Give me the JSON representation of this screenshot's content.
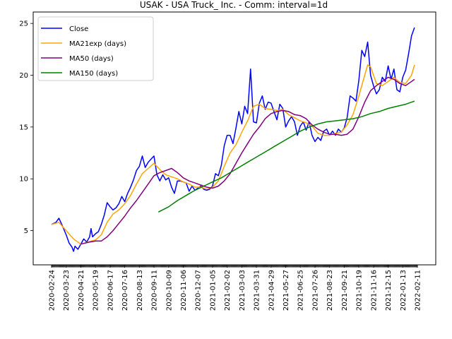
{
  "chart_data": {
    "type": "line",
    "title": "USAK - USA Truck_ Inc. - Comm: interval=1d",
    "xlabel": "",
    "ylabel": "",
    "ylim": [
      1.7,
      26.1
    ],
    "yticks": [
      5,
      10,
      15,
      20,
      25
    ],
    "grid": false,
    "legend_position": "upper-left",
    "x_tick_labels": [
      "2020-02-24",
      "2020-03-23",
      "2020-04-21",
      "2020-05-19",
      "2020-06-17",
      "2020-07-16",
      "2020-08-13",
      "2020-09-11",
      "2020-10-09",
      "2020-11-06",
      "2020-12-07",
      "2021-01-05",
      "2021-02-02",
      "2021-03-03",
      "2021-03-31",
      "2021-04-29",
      "2021-05-27",
      "2021-06-25",
      "2021-07-26",
      "2021-08-23",
      "2021-09-21",
      "2021-10-19",
      "2021-11-16",
      "2021-12-15",
      "2022-01-13",
      "2022-02-11"
    ],
    "colors": {
      "Close": "#0000ff",
      "MA21exp (days)": "#ffa500",
      "MA50 (days)": "#800080",
      "MA150 (days)": "#008000"
    },
    "series": [
      {
        "name": "Close",
        "points": [
          [
            0,
            5.6
          ],
          [
            0.3,
            5.8
          ],
          [
            0.5,
            6.2
          ],
          [
            0.7,
            5.6
          ],
          [
            1.0,
            4.6
          ],
          [
            1.2,
            3.8
          ],
          [
            1.4,
            3.4
          ],
          [
            1.5,
            3.0
          ],
          [
            1.6,
            3.5
          ],
          [
            1.8,
            3.2
          ],
          [
            2.0,
            3.7
          ],
          [
            2.2,
            4.2
          ],
          [
            2.4,
            3.9
          ],
          [
            2.6,
            4.4
          ],
          [
            2.7,
            5.2
          ],
          [
            2.8,
            4.4
          ],
          [
            3.0,
            4.7
          ],
          [
            3.2,
            4.9
          ],
          [
            3.4,
            5.6
          ],
          [
            3.6,
            6.5
          ],
          [
            3.8,
            7.7
          ],
          [
            4.0,
            7.3
          ],
          [
            4.2,
            7.0
          ],
          [
            4.4,
            7.2
          ],
          [
            4.6,
            7.6
          ],
          [
            4.8,
            8.3
          ],
          [
            5.0,
            7.8
          ],
          [
            5.2,
            8.6
          ],
          [
            5.4,
            9.2
          ],
          [
            5.6,
            9.9
          ],
          [
            5.8,
            10.8
          ],
          [
            6.0,
            11.2
          ],
          [
            6.2,
            12.2
          ],
          [
            6.4,
            11.1
          ],
          [
            6.6,
            11.6
          ],
          [
            6.8,
            11.9
          ],
          [
            7.0,
            12.2
          ],
          [
            7.2,
            10.4
          ],
          [
            7.4,
            9.8
          ],
          [
            7.6,
            10.4
          ],
          [
            7.8,
            9.9
          ],
          [
            8.0,
            10.1
          ],
          [
            8.2,
            9.2
          ],
          [
            8.4,
            8.6
          ],
          [
            8.6,
            9.8
          ],
          [
            8.8,
            9.8
          ],
          [
            9.0,
            9.7
          ],
          [
            9.2,
            9.6
          ],
          [
            9.4,
            8.8
          ],
          [
            9.6,
            9.3
          ],
          [
            9.8,
            8.9
          ],
          [
            10.0,
            9.1
          ],
          [
            10.2,
            9.3
          ],
          [
            10.4,
            9.0
          ],
          [
            10.6,
            8.9
          ],
          [
            10.8,
            9.0
          ],
          [
            11.0,
            9.3
          ],
          [
            11.2,
            10.5
          ],
          [
            11.4,
            10.3
          ],
          [
            11.6,
            11.3
          ],
          [
            11.8,
            13.2
          ],
          [
            12.0,
            14.2
          ],
          [
            12.2,
            14.2
          ],
          [
            12.4,
            13.4
          ],
          [
            12.6,
            14.9
          ],
          [
            12.8,
            16.5
          ],
          [
            13.0,
            15.3
          ],
          [
            13.2,
            17.0
          ],
          [
            13.4,
            16.3
          ],
          [
            13.6,
            20.6
          ],
          [
            13.8,
            15.5
          ],
          [
            14.0,
            15.4
          ],
          [
            14.2,
            17.3
          ],
          [
            14.4,
            18.0
          ],
          [
            14.6,
            16.7
          ],
          [
            14.8,
            17.4
          ],
          [
            15.0,
            17.3
          ],
          [
            15.2,
            16.5
          ],
          [
            15.4,
            15.7
          ],
          [
            15.6,
            17.2
          ],
          [
            15.8,
            16.8
          ],
          [
            16.0,
            15.0
          ],
          [
            16.2,
            15.6
          ],
          [
            16.4,
            16.0
          ],
          [
            16.6,
            15.5
          ],
          [
            16.8,
            14.2
          ],
          [
            17.0,
            15.1
          ],
          [
            17.2,
            15.5
          ],
          [
            17.4,
            14.7
          ],
          [
            17.6,
            15.5
          ],
          [
            17.8,
            14.2
          ],
          [
            18.0,
            13.6
          ],
          [
            18.2,
            14.0
          ],
          [
            18.4,
            13.7
          ],
          [
            18.6,
            14.6
          ],
          [
            18.8,
            14.8
          ],
          [
            19.0,
            14.2
          ],
          [
            19.2,
            14.6
          ],
          [
            19.4,
            14.2
          ],
          [
            19.6,
            14.8
          ],
          [
            19.8,
            14.5
          ],
          [
            20.0,
            14.9
          ],
          [
            20.2,
            15.9
          ],
          [
            20.4,
            18.0
          ],
          [
            20.6,
            17.8
          ],
          [
            20.8,
            17.5
          ],
          [
            21.0,
            19.5
          ],
          [
            21.2,
            22.4
          ],
          [
            21.4,
            21.8
          ],
          [
            21.6,
            23.2
          ],
          [
            21.8,
            20.0
          ],
          [
            22.0,
            19.0
          ],
          [
            22.2,
            18.2
          ],
          [
            22.4,
            18.6
          ],
          [
            22.6,
            19.8
          ],
          [
            22.8,
            19.4
          ],
          [
            23.0,
            20.9
          ],
          [
            23.2,
            19.6
          ],
          [
            23.4,
            20.6
          ],
          [
            23.6,
            18.6
          ],
          [
            23.8,
            18.4
          ],
          [
            24.0,
            19.8
          ],
          [
            24.2,
            20.5
          ],
          [
            24.4,
            22.1
          ],
          [
            24.6,
            23.8
          ],
          [
            24.8,
            24.6
          ]
        ]
      },
      {
        "name": "MA21exp (days)",
        "points": [
          [
            0,
            5.6
          ],
          [
            0.5,
            5.8
          ],
          [
            1.0,
            5.0
          ],
          [
            1.5,
            4.2
          ],
          [
            2.0,
            3.7
          ],
          [
            2.5,
            3.9
          ],
          [
            3.0,
            4.1
          ],
          [
            3.4,
            4.6
          ],
          [
            3.8,
            5.8
          ],
          [
            4.2,
            6.6
          ],
          [
            4.6,
            7.0
          ],
          [
            5.0,
            7.6
          ],
          [
            5.4,
            8.4
          ],
          [
            5.8,
            9.5
          ],
          [
            6.2,
            10.5
          ],
          [
            6.6,
            11.0
          ],
          [
            7.0,
            11.5
          ],
          [
            7.4,
            10.9
          ],
          [
            7.8,
            10.4
          ],
          [
            8.2,
            10.2
          ],
          [
            8.6,
            10.0
          ],
          [
            9.0,
            9.7
          ],
          [
            9.4,
            9.5
          ],
          [
            9.8,
            9.2
          ],
          [
            10.2,
            9.2
          ],
          [
            10.6,
            9.0
          ],
          [
            11.0,
            9.2
          ],
          [
            11.4,
            9.8
          ],
          [
            11.8,
            11.2
          ],
          [
            12.2,
            12.5
          ],
          [
            12.6,
            13.3
          ],
          [
            13.0,
            14.5
          ],
          [
            13.4,
            15.6
          ],
          [
            13.8,
            17.0
          ],
          [
            14.2,
            17.2
          ],
          [
            14.6,
            16.8
          ],
          [
            15.0,
            16.7
          ],
          [
            15.4,
            16.6
          ],
          [
            15.8,
            16.7
          ],
          [
            16.2,
            16.2
          ],
          [
            16.6,
            15.9
          ],
          [
            17.0,
            15.6
          ],
          [
            17.4,
            15.4
          ],
          [
            17.8,
            15.1
          ],
          [
            18.2,
            14.4
          ],
          [
            18.6,
            14.2
          ],
          [
            19.0,
            14.2
          ],
          [
            19.4,
            14.4
          ],
          [
            19.8,
            14.5
          ],
          [
            20.2,
            15.2
          ],
          [
            20.6,
            16.2
          ],
          [
            21.0,
            18.0
          ],
          [
            21.4,
            20.0
          ],
          [
            21.6,
            21.0
          ],
          [
            21.8,
            20.8
          ],
          [
            22.2,
            19.2
          ],
          [
            22.6,
            19.0
          ],
          [
            23.0,
            19.4
          ],
          [
            23.4,
            19.8
          ],
          [
            23.8,
            19.3
          ],
          [
            24.2,
            19.2
          ],
          [
            24.6,
            20.0
          ],
          [
            24.8,
            21.0
          ]
        ]
      },
      {
        "name": "MA50 (days)",
        "points": [
          [
            2.0,
            3.7
          ],
          [
            2.6,
            3.9
          ],
          [
            3.0,
            4.0
          ],
          [
            3.4,
            4.0
          ],
          [
            3.8,
            4.4
          ],
          [
            4.2,
            5.0
          ],
          [
            4.6,
            5.7
          ],
          [
            5.0,
            6.4
          ],
          [
            5.4,
            7.2
          ],
          [
            5.8,
            7.9
          ],
          [
            6.2,
            8.7
          ],
          [
            6.6,
            9.5
          ],
          [
            7.0,
            10.3
          ],
          [
            7.4,
            10.6
          ],
          [
            7.8,
            10.8
          ],
          [
            8.2,
            11.0
          ],
          [
            8.6,
            10.6
          ],
          [
            9.0,
            10.1
          ],
          [
            9.4,
            9.8
          ],
          [
            9.8,
            9.6
          ],
          [
            10.2,
            9.4
          ],
          [
            10.6,
            9.2
          ],
          [
            11.0,
            9.1
          ],
          [
            11.4,
            9.3
          ],
          [
            11.8,
            9.8
          ],
          [
            12.2,
            10.5
          ],
          [
            12.6,
            11.5
          ],
          [
            13.0,
            12.5
          ],
          [
            13.4,
            13.4
          ],
          [
            13.8,
            14.3
          ],
          [
            14.2,
            15.0
          ],
          [
            14.6,
            15.8
          ],
          [
            15.0,
            16.3
          ],
          [
            15.4,
            16.5
          ],
          [
            15.8,
            16.6
          ],
          [
            16.2,
            16.5
          ],
          [
            16.6,
            16.2
          ],
          [
            17.0,
            16.1
          ],
          [
            17.4,
            15.8
          ],
          [
            17.8,
            15.2
          ],
          [
            18.2,
            14.8
          ],
          [
            18.6,
            14.5
          ],
          [
            19.0,
            14.3
          ],
          [
            19.4,
            14.3
          ],
          [
            19.8,
            14.2
          ],
          [
            20.2,
            14.3
          ],
          [
            20.6,
            14.8
          ],
          [
            21.0,
            16.0
          ],
          [
            21.4,
            17.4
          ],
          [
            21.8,
            18.5
          ],
          [
            22.2,
            19.0
          ],
          [
            22.6,
            19.4
          ],
          [
            23.0,
            19.8
          ],
          [
            23.4,
            19.6
          ],
          [
            23.8,
            19.2
          ],
          [
            24.2,
            19.0
          ],
          [
            24.6,
            19.4
          ],
          [
            24.8,
            19.6
          ]
        ]
      },
      {
        "name": "MA150 (days)",
        "points": [
          [
            7.3,
            6.8
          ],
          [
            8.0,
            7.3
          ],
          [
            8.6,
            7.9
          ],
          [
            9.2,
            8.4
          ],
          [
            9.8,
            8.9
          ],
          [
            10.4,
            9.3
          ],
          [
            11.0,
            9.7
          ],
          [
            11.6,
            10.1
          ],
          [
            12.2,
            10.6
          ],
          [
            12.8,
            11.1
          ],
          [
            13.4,
            11.6
          ],
          [
            14.0,
            12.1
          ],
          [
            14.6,
            12.6
          ],
          [
            15.2,
            13.1
          ],
          [
            15.8,
            13.6
          ],
          [
            16.4,
            14.1
          ],
          [
            17.0,
            14.6
          ],
          [
            17.6,
            15.0
          ],
          [
            18.2,
            15.3
          ],
          [
            18.8,
            15.5
          ],
          [
            19.4,
            15.6
          ],
          [
            20.0,
            15.7
          ],
          [
            20.6,
            15.8
          ],
          [
            21.2,
            16.0
          ],
          [
            21.8,
            16.3
          ],
          [
            22.4,
            16.5
          ],
          [
            23.0,
            16.8
          ],
          [
            23.6,
            17.0
          ],
          [
            24.2,
            17.2
          ],
          [
            24.8,
            17.5
          ]
        ]
      }
    ]
  }
}
